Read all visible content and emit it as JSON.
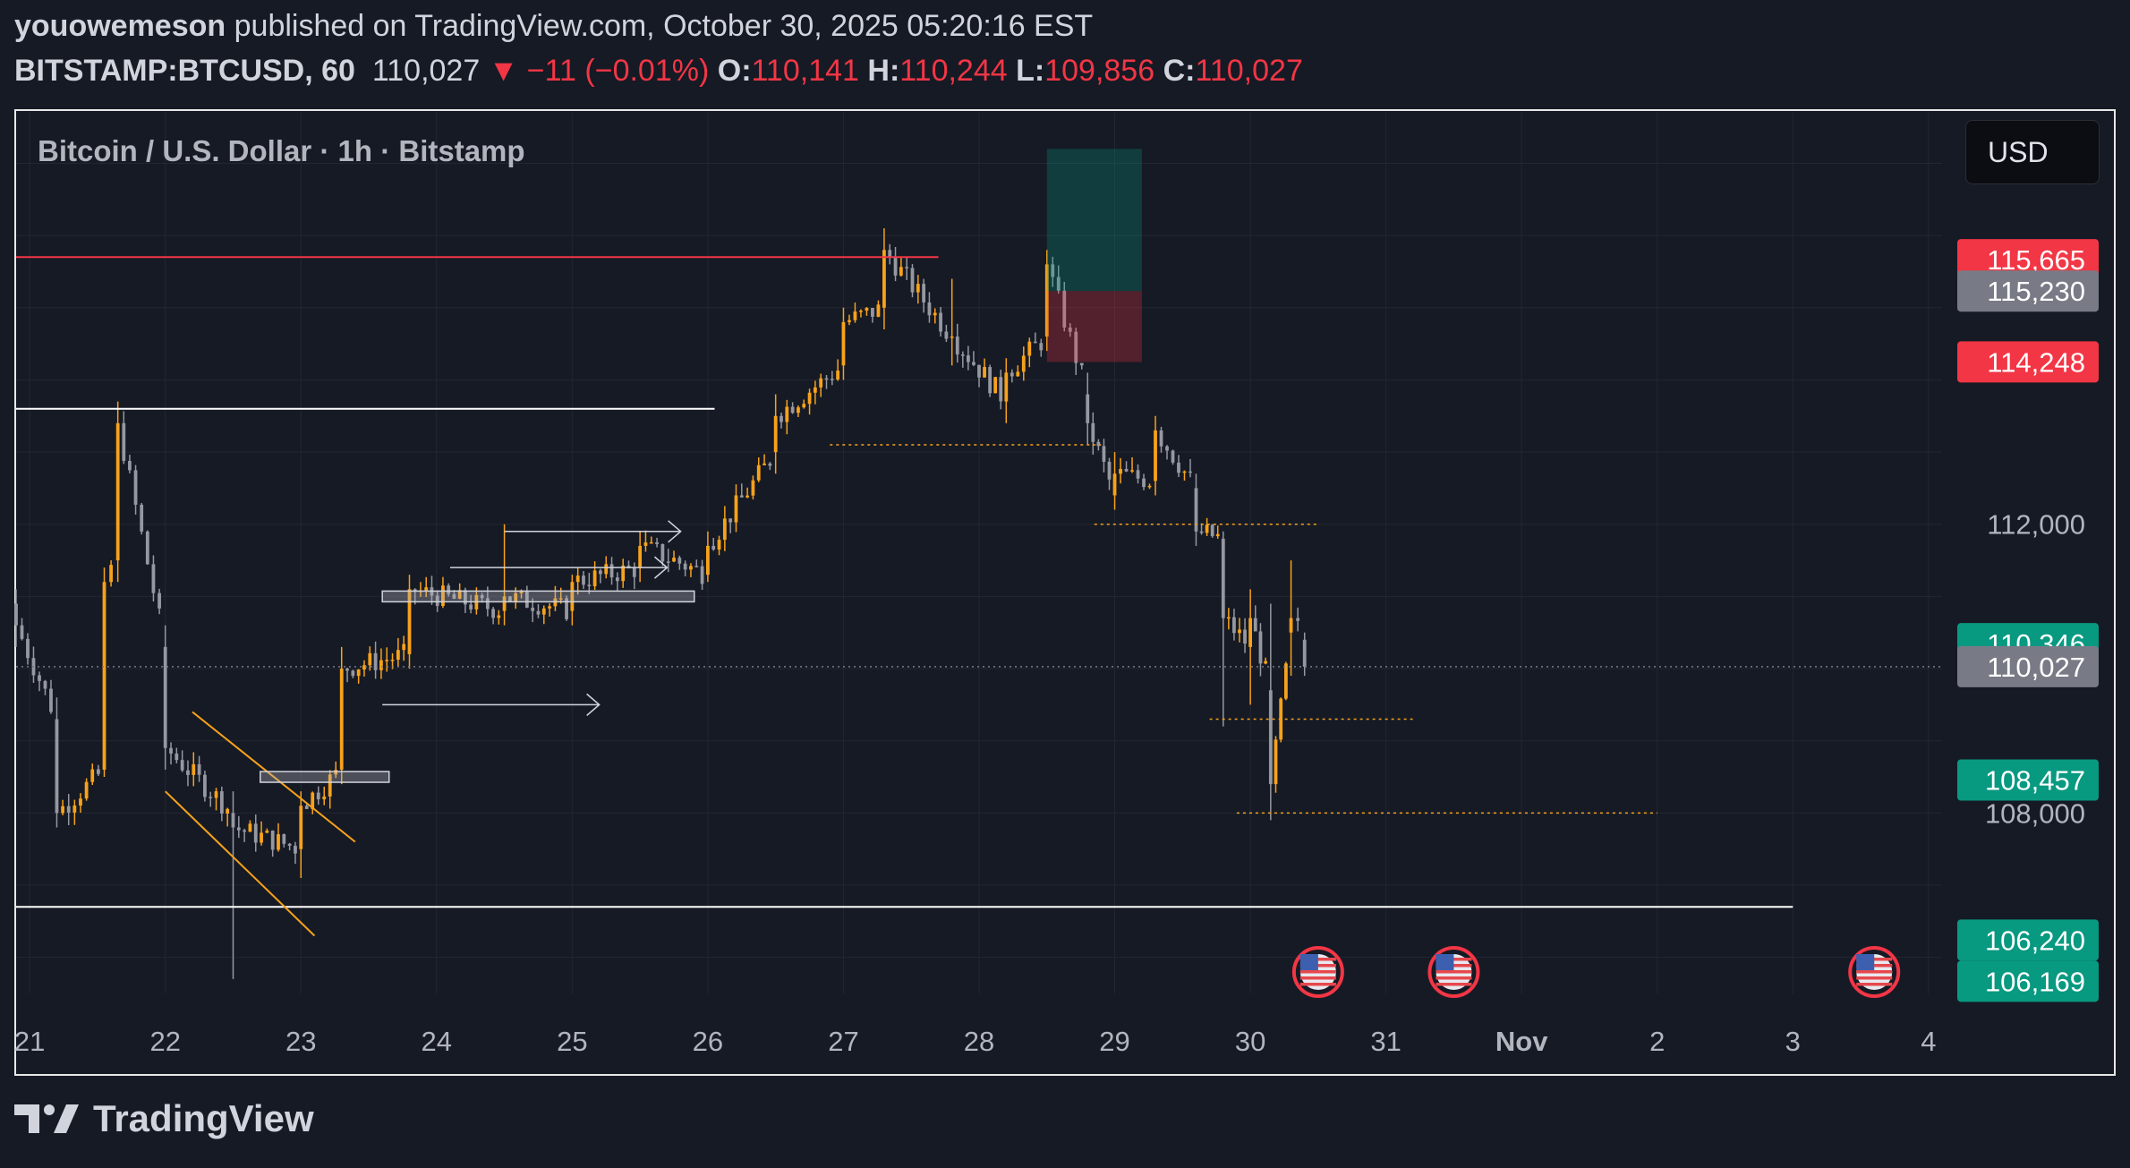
{
  "header": {
    "author": "youowemeson",
    "published_text": "published on TradingView.com, October 30, 2025 05:20:16 EST",
    "symbol": "BITSTAMP:BTCUSD, 60",
    "last": "110,027",
    "change": "▼ −11 (−0.01%)",
    "o_label": "O:",
    "o": "110,141",
    "h_label": "H:",
    "h": "110,244",
    "l_label": "L:",
    "l": "109,856",
    "c_label": "C:",
    "c": "110,027"
  },
  "currency_button": "USD",
  "footer": {
    "brand": "TradingView",
    "logo_icon": "tradingview-logo-icon"
  },
  "colors": {
    "background": "#161a25",
    "up": "#f7a21b",
    "down": "#9598a1",
    "red": "#f23645",
    "green": "#089981",
    "grey_label": "#787b86"
  },
  "chart_data": {
    "type": "candlestick",
    "title": "Bitcoin / U.S. Dollar · 1h · Bitstamp",
    "price_axis": {
      "ticks": [
        {
          "value": 112000,
          "label": "112,000"
        },
        {
          "value": 108000,
          "label": "108,000"
        }
      ],
      "ylim": [
        105500,
        117700
      ]
    },
    "time_axis": {
      "labels": [
        "21",
        "22",
        "23",
        "24",
        "25",
        "26",
        "27",
        "28",
        "29",
        "30",
        "31",
        "Nov",
        "2",
        "3",
        "4"
      ],
      "bold_label": "Nov"
    },
    "price_labels": [
      {
        "value": 115665,
        "label": "115,665",
        "color": "#f23645"
      },
      {
        "value": 115230,
        "label": "115,230",
        "color": "#787b86"
      },
      {
        "value": 114248,
        "label": "114,248",
        "color": "#f23645"
      },
      {
        "value": 110346,
        "label": "110,346",
        "color": "#089981"
      },
      {
        "value": 110027,
        "label": "110,027",
        "color": "#787b86"
      },
      {
        "value": 108457,
        "label": "108,457",
        "color": "#089981"
      },
      {
        "value": 106240,
        "label": "106,240",
        "color": "#089981"
      },
      {
        "value": 106169,
        "label": "106,169",
        "color": "#089981"
      }
    ],
    "last_price": 110027,
    "key_points": [
      {
        "x": 20.9,
        "o": 110900,
        "h": 111100,
        "l": 110300,
        "c": 110600
      },
      {
        "x": 21.2,
        "o": 109300,
        "h": 109600,
        "l": 107800,
        "c": 108000
      },
      {
        "x": 21.55,
        "o": 108600,
        "h": 111400,
        "l": 108500,
        "c": 111200
      },
      {
        "x": 21.65,
        "o": 111500,
        "h": 113700,
        "l": 111200,
        "c": 113400
      },
      {
        "x": 22.0,
        "o": 110300,
        "h": 110600,
        "l": 108600,
        "c": 108900
      },
      {
        "x": 22.5,
        "o": 108000,
        "h": 108300,
        "l": 105700,
        "c": 107800
      },
      {
        "x": 23.0,
        "o": 107500,
        "h": 108300,
        "l": 107100,
        "c": 108100
      },
      {
        "x": 23.3,
        "o": 108600,
        "h": 110300,
        "l": 108400,
        "c": 110000
      },
      {
        "x": 23.8,
        "o": 110200,
        "h": 111300,
        "l": 110000,
        "c": 111100
      },
      {
        "x": 24.5,
        "o": 110800,
        "h": 112000,
        "l": 110600,
        "c": 111000
      },
      {
        "x": 25.0,
        "o": 110800,
        "h": 111300,
        "l": 110600,
        "c": 111200
      },
      {
        "x": 25.5,
        "o": 111400,
        "h": 111900,
        "l": 111200,
        "c": 111700
      },
      {
        "x": 26.0,
        "o": 111300,
        "h": 111900,
        "l": 111200,
        "c": 111700
      },
      {
        "x": 26.5,
        "o": 113000,
        "h": 113800,
        "l": 112700,
        "c": 113500
      },
      {
        "x": 27.0,
        "o": 114200,
        "h": 115000,
        "l": 114000,
        "c": 114800
      },
      {
        "x": 27.3,
        "o": 115000,
        "h": 116100,
        "l": 114700,
        "c": 115800
      },
      {
        "x": 27.8,
        "o": 114600,
        "h": 115400,
        "l": 114200,
        "c": 114600
      },
      {
        "x": 28.2,
        "o": 113700,
        "h": 114300,
        "l": 113400,
        "c": 114100
      },
      {
        "x": 28.5,
        "o": 114600,
        "h": 115800,
        "l": 114400,
        "c": 115600
      },
      {
        "x": 28.8,
        "o": 113800,
        "h": 114100,
        "l": 113100,
        "c": 113400
      },
      {
        "x": 29.0,
        "o": 112400,
        "h": 113000,
        "l": 112200,
        "c": 112700
      },
      {
        "x": 29.3,
        "o": 112600,
        "h": 113500,
        "l": 112400,
        "c": 113300
      },
      {
        "x": 29.6,
        "o": 112500,
        "h": 112700,
        "l": 111700,
        "c": 111900
      },
      {
        "x": 29.8,
        "o": 111800,
        "h": 111900,
        "l": 109200,
        "c": 110700
      },
      {
        "x": 30.0,
        "o": 110300,
        "h": 111100,
        "l": 109500,
        "c": 110700
      },
      {
        "x": 30.15,
        "o": 109700,
        "h": 110900,
        "l": 107900,
        "c": 108400
      },
      {
        "x": 30.3,
        "o": 110500,
        "h": 111500,
        "l": 109900,
        "c": 110700
      },
      {
        "x": 30.4,
        "o": 110400,
        "h": 110500,
        "l": 109900,
        "c": 110027
      }
    ],
    "drawings": [
      {
        "kind": "hline",
        "value": 115700,
        "color": "#f23645"
      },
      {
        "kind": "hline",
        "value": 113600,
        "color": "#ffffff"
      },
      {
        "kind": "hline",
        "value": 106700,
        "color": "#ffffff"
      },
      {
        "kind": "dotted",
        "value": 113100
      },
      {
        "kind": "dotted",
        "value": 112000
      },
      {
        "kind": "dotted",
        "value": 109300
      },
      {
        "kind": "dotted",
        "value": 108000
      },
      {
        "kind": "position",
        "entry": 115230,
        "target": 117200,
        "stop": 114248
      }
    ],
    "events": [
      {
        "x": 30.5,
        "icon": "us-flag-icon"
      },
      {
        "x": 31.5,
        "icon": "us-flag-icon"
      },
      {
        "x": 34.6,
        "icon": "us-flag-icon"
      }
    ]
  }
}
